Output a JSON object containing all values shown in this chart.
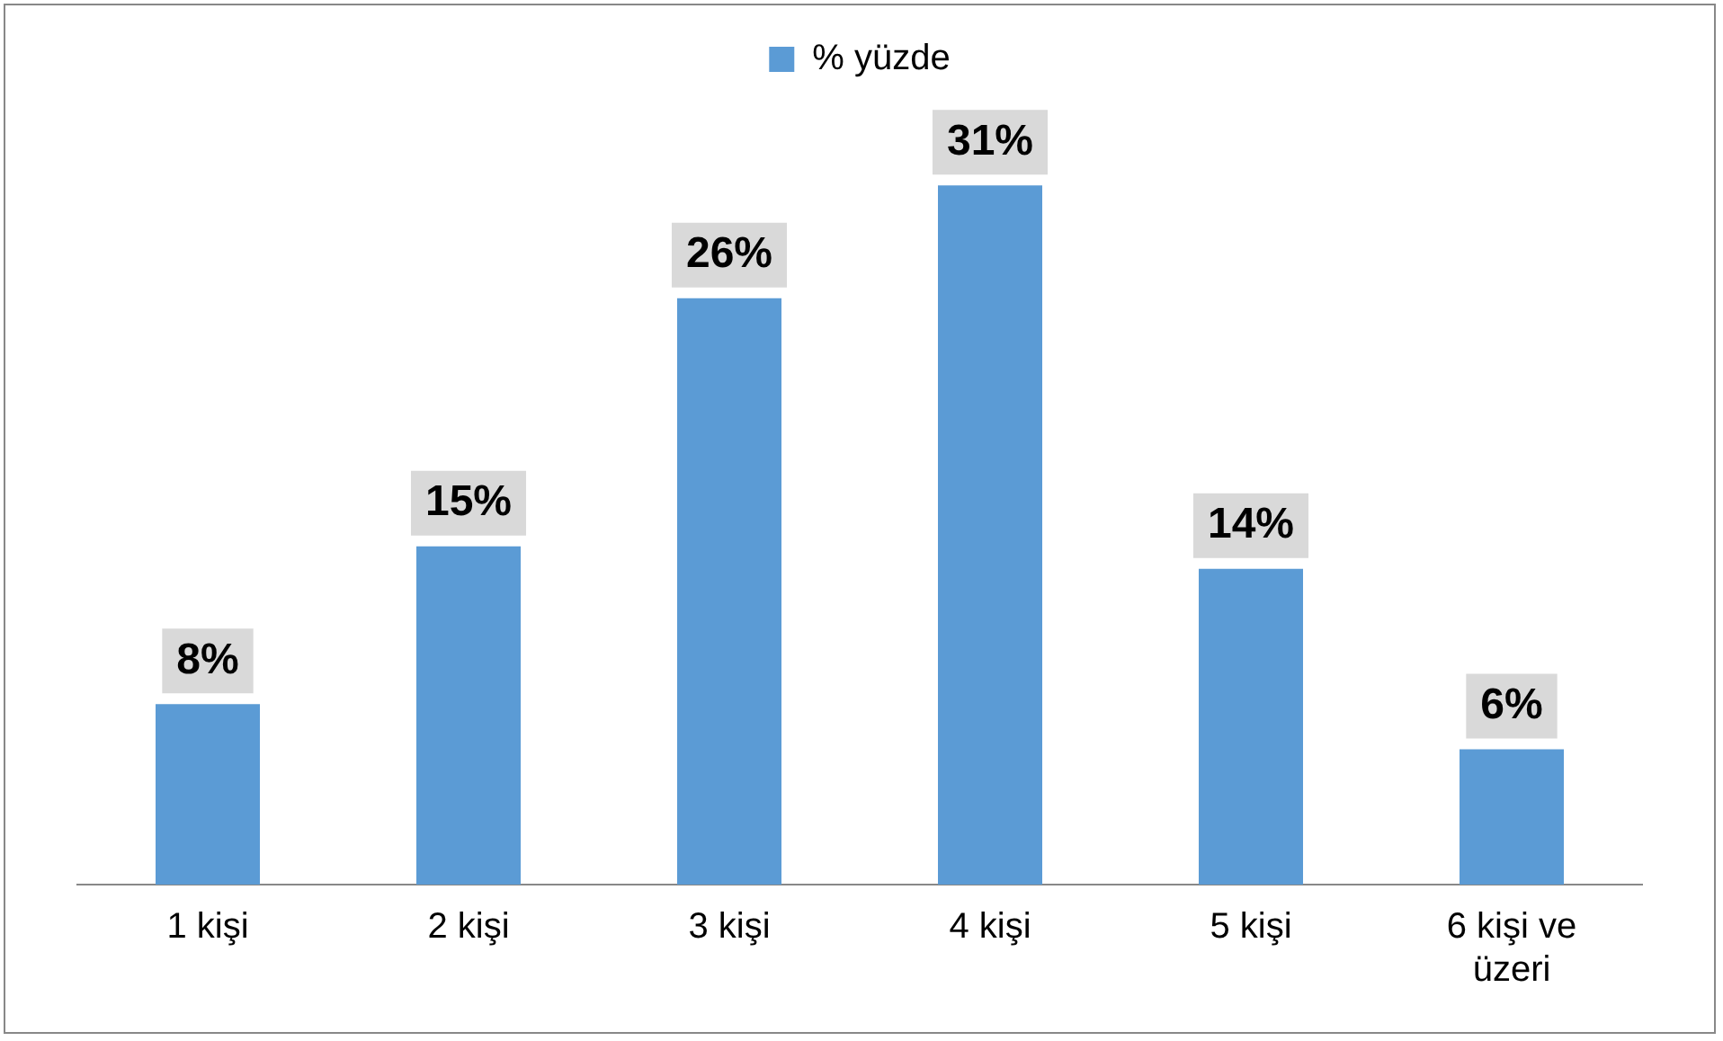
{
  "chart_data": {
    "type": "bar",
    "categories": [
      "1 kişi",
      "2 kişi",
      "3 kişi",
      "4 kişi",
      "5 kişi",
      "6 kişi ve üzeri"
    ],
    "series": [
      {
        "name": "% yüzde",
        "color": "#5b9bd5",
        "values": [
          8,
          15,
          26,
          31,
          14,
          6
        ],
        "value_labels": [
          "8%",
          "15%",
          "26%",
          "31%",
          "14%",
          "6%"
        ]
      }
    ],
    "legend": "top",
    "grid": false,
    "tick_labels": "x"
  }
}
